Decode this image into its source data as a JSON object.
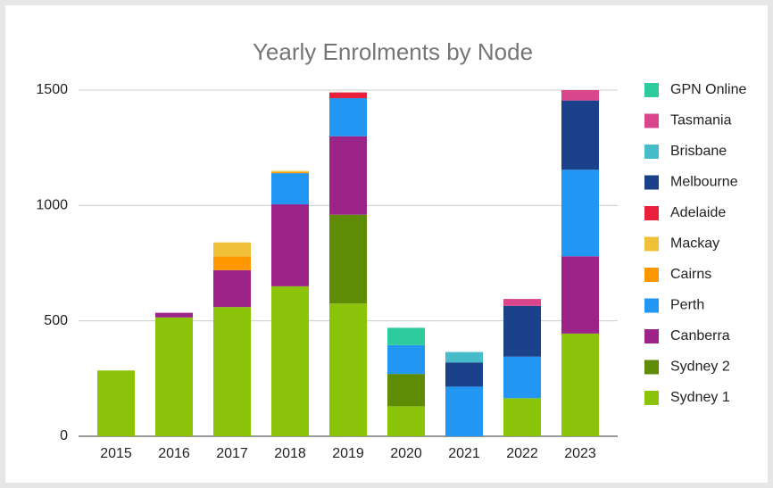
{
  "chart_data": {
    "type": "stacked_bar",
    "title": "Yearly Enrolments by Node",
    "categories": [
      "2015",
      "2016",
      "2017",
      "2018",
      "2019",
      "2020",
      "2021",
      "2022",
      "2023"
    ],
    "series": [
      {
        "name": "Sydney 1",
        "color": "#8bc20a",
        "values": [
          285,
          515,
          560,
          650,
          575,
          130,
          null,
          165,
          445
        ]
      },
      {
        "name": "Sydney 2",
        "color": "#5f8c05",
        "values": [
          null,
          null,
          null,
          null,
          385,
          140,
          null,
          null,
          null
        ]
      },
      {
        "name": "Canberra",
        "color": "#9c2489",
        "values": [
          null,
          20,
          160,
          355,
          340,
          null,
          null,
          null,
          335
        ]
      },
      {
        "name": "Perth",
        "color": "#2196f3",
        "values": [
          null,
          null,
          null,
          135,
          165,
          125,
          215,
          180,
          375
        ]
      },
      {
        "name": "Cairns",
        "color": "#ff9800",
        "values": [
          null,
          null,
          60,
          5,
          null,
          null,
          null,
          null,
          null
        ]
      },
      {
        "name": "Mackay",
        "color": "#f0c138",
        "values": [
          null,
          null,
          60,
          5,
          null,
          null,
          null,
          null,
          null
        ]
      },
      {
        "name": "Adelaide",
        "color": "#e8203c",
        "values": [
          null,
          null,
          null,
          null,
          25,
          null,
          null,
          null,
          null
        ]
      },
      {
        "name": "Melbourne",
        "color": "#1a418a",
        "values": [
          null,
          null,
          null,
          null,
          null,
          null,
          105,
          220,
          300
        ]
      },
      {
        "name": "Brisbane",
        "color": "#46bcc8",
        "values": [
          null,
          null,
          null,
          null,
          null,
          null,
          45,
          null,
          null
        ]
      },
      {
        "name": "Tasmania",
        "color": "#d9468b",
        "values": [
          null,
          null,
          null,
          null,
          null,
          null,
          null,
          30,
          45
        ]
      },
      {
        "name": "GPN Online",
        "color": "#2ecc9c",
        "values": [
          null,
          null,
          null,
          null,
          null,
          75,
          null,
          null,
          null
        ]
      }
    ],
    "ylim": [
      0,
      1500
    ],
    "yticks": [
      0,
      500,
      1000,
      1500
    ],
    "grid": true,
    "legend": "right"
  }
}
